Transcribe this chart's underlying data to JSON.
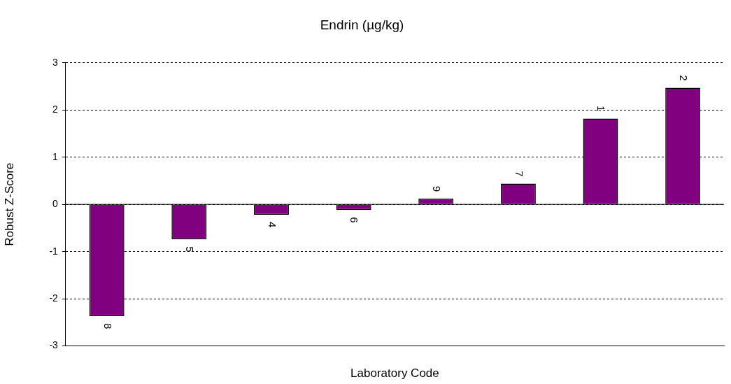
{
  "chart_data": {
    "type": "bar",
    "title": "Endrin (µg/kg)",
    "xlabel": "Laboratory Code",
    "ylabel": "Robust Z-Score",
    "categories": [
      "8",
      "5",
      "4",
      "6",
      "9",
      "7",
      "1",
      "2"
    ],
    "values": [
      -2.37,
      -0.74,
      -0.22,
      -0.12,
      0.12,
      0.44,
      1.82,
      2.47
    ],
    "color": "#800080",
    "ylim": [
      -3,
      3
    ],
    "yticks": [
      -3,
      -2,
      -1,
      0,
      1,
      2,
      3
    ],
    "grid": "y"
  }
}
